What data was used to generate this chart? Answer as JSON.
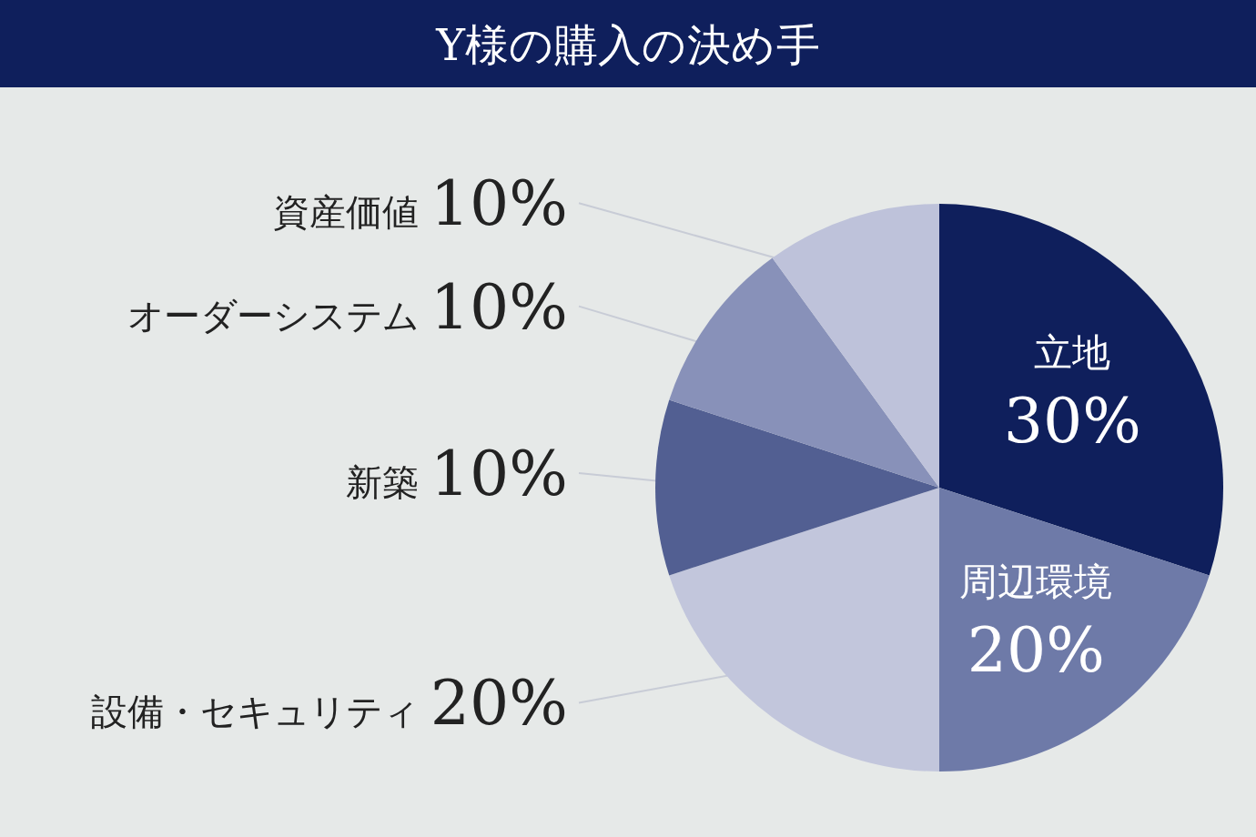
{
  "chart_data": {
    "type": "pie",
    "title": "Y様の購入の決め手",
    "categories": [
      "立地",
      "周辺環境",
      "設備・セキュリティ",
      "新築",
      "オーダーシステム",
      "資産価値"
    ],
    "values": [
      30,
      20,
      20,
      10,
      10,
      10
    ],
    "colors": [
      "#0f1f5c",
      "#6e7aa8",
      "#c2c6dc",
      "#525f92",
      "#8891b9",
      "#bec2da"
    ],
    "value_labels": [
      "30%",
      "20%",
      "20%",
      "10%",
      "10%",
      "10%"
    ]
  }
}
